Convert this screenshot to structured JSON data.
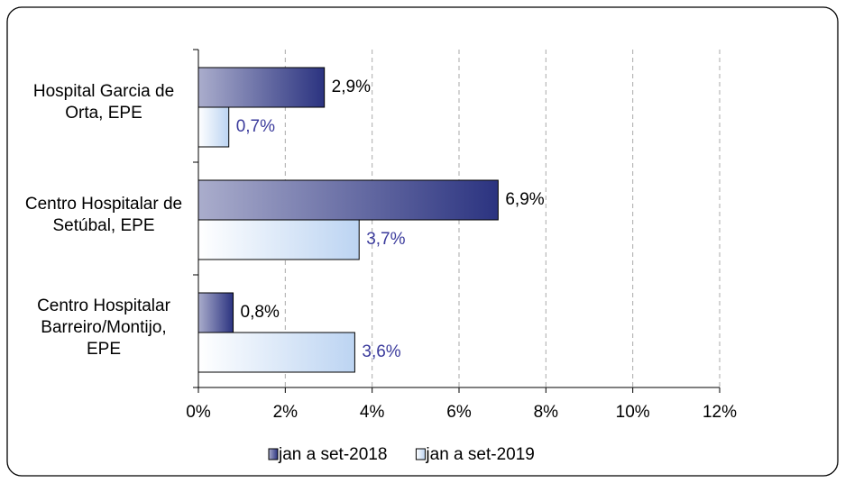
{
  "chart_data": {
    "type": "bar",
    "orientation": "horizontal",
    "categories": [
      "Hospital Garcia de Orta, EPE",
      "Centro Hospitalar de Setúbal, EPE",
      "Centro Hospitalar Barreiro/Montijo, EPE"
    ],
    "series": [
      {
        "name": "jan a set-2018",
        "color": "#2b3380",
        "values": [
          2.9,
          6.9,
          0.8
        ],
        "value_labels": [
          "2,9%",
          "6,9%",
          "0,8%"
        ]
      },
      {
        "name": "jan a set-2019",
        "color": "#bcd4f2",
        "values": [
          0.7,
          3.7,
          3.6
        ],
        "value_labels": [
          "0,7%",
          "3,7%",
          "3,6%"
        ]
      }
    ],
    "xlim": [
      0,
      12
    ],
    "xticks": [
      {
        "value": 0,
        "label": "0%"
      },
      {
        "value": 2,
        "label": "2%"
      },
      {
        "value": 4,
        "label": "4%"
      },
      {
        "value": 6,
        "label": "6%"
      },
      {
        "value": 8,
        "label": "8%"
      },
      {
        "value": 10,
        "label": "10%"
      },
      {
        "value": 12,
        "label": "12%"
      }
    ],
    "grid": true,
    "legend": "bottom"
  }
}
